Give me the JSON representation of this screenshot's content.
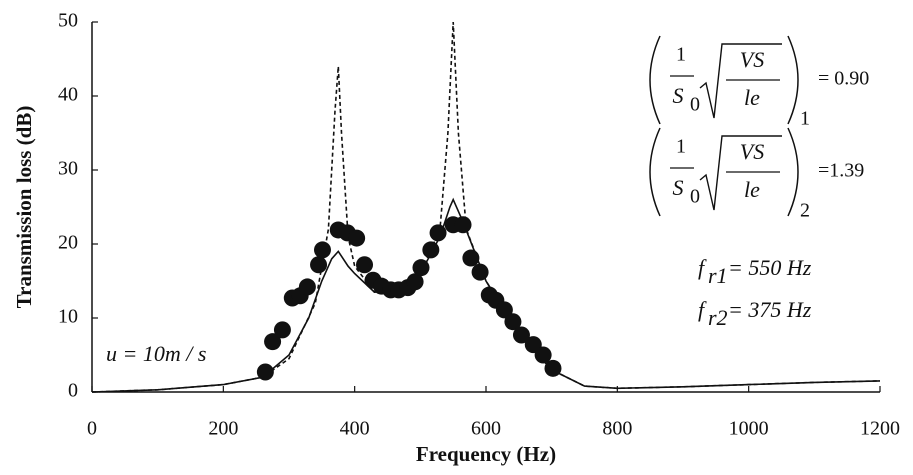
{
  "chart_data": {
    "type": "line",
    "xlabel": "Frequency (Hz)",
    "ylabel": "Transmission loss (dB)",
    "xlim": [
      0,
      1200
    ],
    "xticks": [
      0,
      200,
      400,
      600,
      800,
      1000,
      1200
    ],
    "ylim": [
      0,
      50
    ],
    "yticks": [
      0,
      10,
      20,
      30,
      40,
      50
    ],
    "series": [
      {
        "kind": "line",
        "dash": false,
        "color": "#111111",
        "x": [
          0,
          100,
          200,
          260,
          300,
          330,
          350,
          365,
          375,
          390,
          400,
          430,
          470,
          500,
          530,
          545,
          550,
          565,
          600,
          650,
          700,
          750,
          800,
          900,
          1000,
          1100,
          1200
        ],
        "values": [
          0,
          0.3,
          1,
          2,
          5,
          10,
          15,
          18,
          19,
          17,
          16,
          13.5,
          14,
          16,
          21,
          25,
          26,
          23,
          15,
          8,
          3,
          0.8,
          0.5,
          0.7,
          1,
          1.3,
          1.5
        ]
      },
      {
        "kind": "line",
        "dash": true,
        "color": "#111111",
        "x": [
          0,
          100,
          200,
          260,
          300,
          340,
          360,
          370,
          375,
          380,
          390,
          400,
          430,
          470,
          500,
          530,
          542,
          550,
          558,
          570,
          600,
          650,
          700,
          750,
          800,
          900,
          1000,
          1100,
          1200
        ],
        "values": [
          0,
          0.3,
          1,
          2,
          4.5,
          12,
          22,
          38,
          44,
          35,
          21,
          17,
          13.5,
          14,
          16,
          22,
          35,
          50,
          35,
          22,
          15,
          8,
          3,
          0.8,
          0.5,
          0.7,
          1,
          1.3,
          1.5
        ]
      },
      {
        "kind": "scatter",
        "color": "#111111",
        "x": [
          264,
          275,
          290,
          305,
          317,
          328,
          345,
          351,
          375,
          389,
          403,
          415,
          428,
          441,
          455,
          467,
          481,
          492,
          501,
          516,
          527,
          550,
          565,
          577,
          591,
          605,
          615,
          628,
          641,
          654,
          672,
          687,
          702
        ],
        "values": [
          2.7,
          6.8,
          8.4,
          12.7,
          13,
          14.2,
          17.2,
          19.2,
          21.9,
          21.5,
          20.8,
          17.2,
          15.1,
          14.3,
          13.8,
          13.8,
          14.1,
          14.9,
          16.8,
          19.2,
          21.5,
          22.6,
          22.6,
          18.1,
          16.2,
          13.1,
          12.4,
          11.1,
          9.5,
          7.7,
          6.4,
          5,
          3.2
        ]
      }
    ],
    "formulas": [
      {
        "frac_num": "1",
        "frac_den": "S",
        "den_sub": "0",
        "root_num": "VS",
        "root_den": "le",
        "index": "1",
        "result": "= 0.90"
      },
      {
        "frac_num": "1",
        "frac_den": "S",
        "den_sub": "0",
        "root_num": "VS",
        "root_den": "le",
        "index": "2",
        "result": "=1.39"
      }
    ],
    "resonances": [
      {
        "symbol": "f",
        "sub": "r1",
        "rest": "= 550 Hz"
      },
      {
        "symbol": "f",
        "sub": "r2",
        "rest": "= 375 Hz"
      }
    ],
    "speed_note": "u = 10m / s"
  }
}
